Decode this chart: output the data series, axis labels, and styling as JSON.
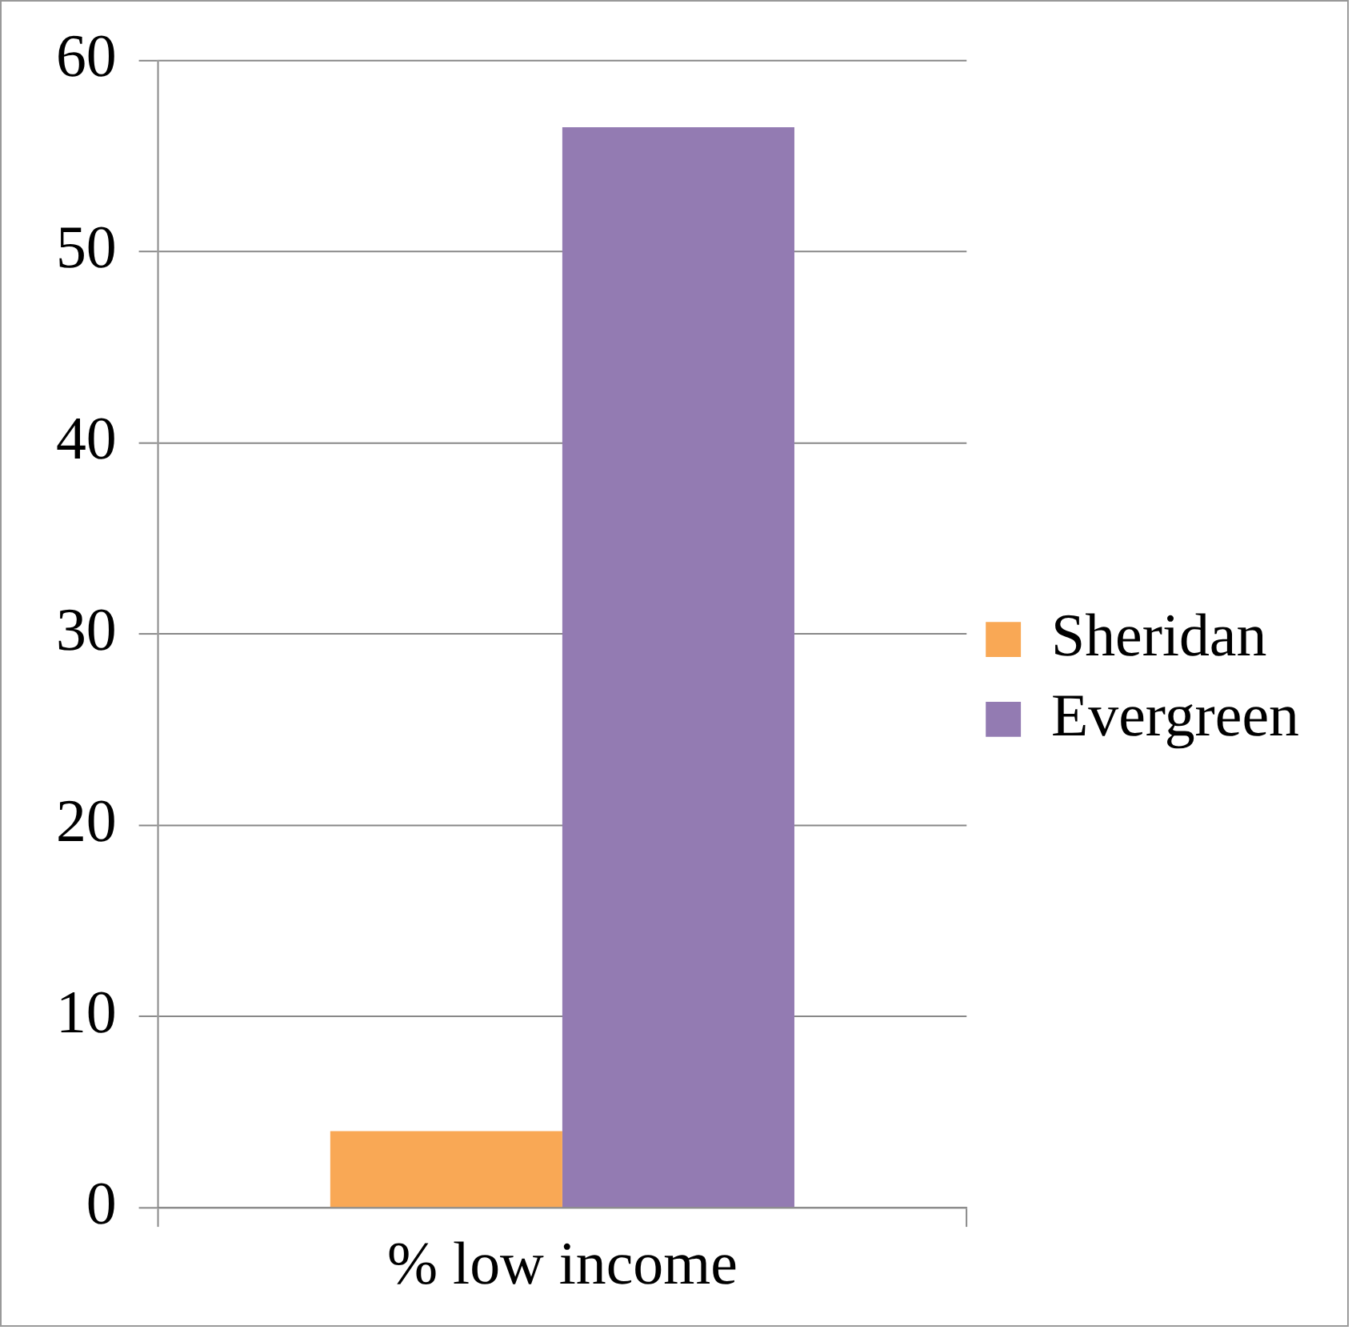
{
  "chart_data": {
    "type": "bar",
    "categories": [
      "% low income"
    ],
    "series": [
      {
        "name": "Sheridan",
        "color": "#f9a855",
        "values": [
          4
        ]
      },
      {
        "name": "Evergreen",
        "color": "#937bb2",
        "values": [
          56.5
        ]
      }
    ],
    "ylim": [
      0,
      60
    ],
    "yticks": [
      0,
      10,
      20,
      30,
      40,
      50,
      60
    ],
    "grid": "y",
    "legend": "right"
  }
}
